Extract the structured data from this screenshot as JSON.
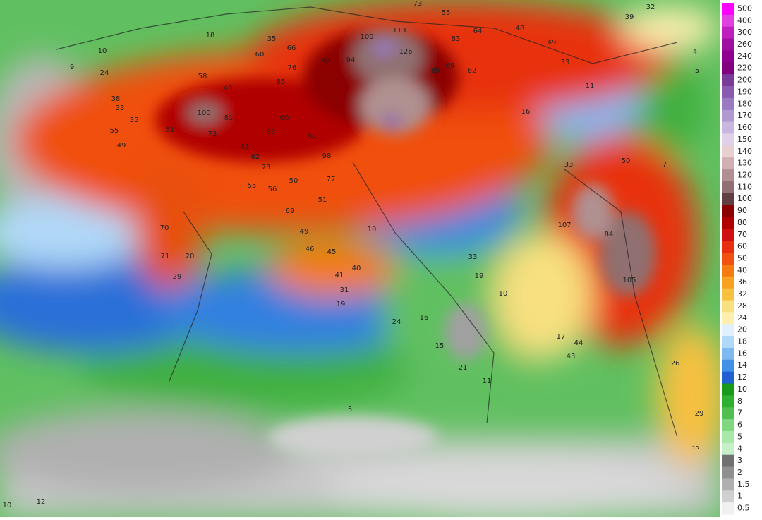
{
  "legend": {
    "items": [
      {
        "value": 500,
        "color": "#ff00ff"
      },
      {
        "value": 400,
        "color": "#e040e0"
      },
      {
        "value": 300,
        "color": "#c020c0"
      },
      {
        "value": 260,
        "color": "#a010a0"
      },
      {
        "value": 240,
        "color": "#900090"
      },
      {
        "value": 220,
        "color": "#800080"
      },
      {
        "value": 200,
        "color": "#7a3a9a"
      },
      {
        "value": 190,
        "color": "#8a5ab0"
      },
      {
        "value": 180,
        "color": "#9a7ac0"
      },
      {
        "value": 170,
        "color": "#b09ad0"
      },
      {
        "value": 160,
        "color": "#c8b8e0"
      },
      {
        "value": 150,
        "color": "#e0d0e8"
      },
      {
        "value": 140,
        "color": "#e8d0d0"
      },
      {
        "value": 130,
        "color": "#d0b0b0"
      },
      {
        "value": 120,
        "color": "#b09090"
      },
      {
        "value": 110,
        "color": "#907070"
      },
      {
        "value": 100,
        "color": "#604040"
      },
      {
        "value": 90,
        "color": "#8b0000"
      },
      {
        "value": 80,
        "color": "#b00000"
      },
      {
        "value": 70,
        "color": "#d01010"
      },
      {
        "value": 60,
        "color": "#e83010"
      },
      {
        "value": 50,
        "color": "#f05010"
      },
      {
        "value": 40,
        "color": "#f57a10"
      },
      {
        "value": 36,
        "color": "#f8a020"
      },
      {
        "value": 32,
        "color": "#f8c040"
      },
      {
        "value": 28,
        "color": "#f8e080"
      },
      {
        "value": 24,
        "color": "#fff0b0"
      },
      {
        "value": 20,
        "color": "#e0f0ff"
      },
      {
        "value": 18,
        "color": "#b0d8f8"
      },
      {
        "value": 16,
        "color": "#80b8f0"
      },
      {
        "value": 14,
        "color": "#4090e8"
      },
      {
        "value": 12,
        "color": "#2060d0"
      },
      {
        "value": 10,
        "color": "#1a9a1a"
      },
      {
        "value": 8,
        "color": "#30b030"
      },
      {
        "value": 7,
        "color": "#50c050"
      },
      {
        "value": 6,
        "color": "#80d880"
      },
      {
        "value": 5,
        "color": "#a8e8a8"
      },
      {
        "value": 4,
        "color": "#c8f0c8"
      },
      {
        "value": 3,
        "color": "#707070"
      },
      {
        "value": 2,
        "color": "#909090"
      },
      {
        "value": 1.5,
        "color": "#b0b0b0"
      },
      {
        "value": 1,
        "color": "#d0d0d0"
      },
      {
        "value": 0.5,
        "color": "#f0f0f0"
      }
    ]
  },
  "map_labels": [
    73,
    55,
    113,
    100,
    83,
    64,
    48,
    39,
    32,
    35,
    60,
    66,
    64,
    94,
    126,
    89,
    69,
    62,
    49,
    33,
    58,
    76,
    85,
    40,
    11,
    16,
    100,
    81,
    60,
    73,
    83,
    61,
    63,
    62,
    98,
    73,
    55,
    56,
    50,
    77,
    51,
    55,
    49,
    51,
    35,
    38,
    33,
    70,
    71,
    20,
    29,
    69,
    49,
    46,
    45,
    40,
    41,
    31,
    19,
    10,
    33,
    19,
    10,
    107,
    84,
    105,
    50,
    33,
    26,
    29,
    35,
    24,
    16,
    15,
    21,
    11,
    17,
    44,
    43,
    10,
    24,
    18,
    9,
    4,
    5,
    7,
    5,
    12,
    10
  ]
}
